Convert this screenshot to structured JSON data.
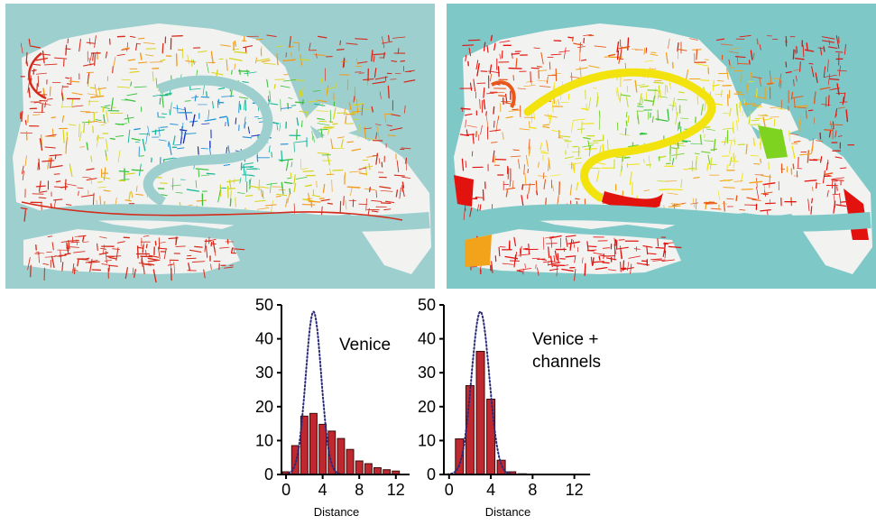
{
  "maps": {
    "left": {
      "water_color": "#9ecfcf",
      "land_color": "#f2f2f0",
      "street_colors": [
        "#1a2fbf",
        "#1e8fd6",
        "#19b79b",
        "#39c23a",
        "#d7d51c",
        "#f29a1a",
        "#d52a1a"
      ]
    },
    "right": {
      "water_color": "#7ec8c7",
      "land_color": "#f2f2f0",
      "street_colors": [
        "#2fbf3a",
        "#72cf2a",
        "#c9dc1f",
        "#f2e30f",
        "#f2a31a",
        "#e8581a",
        "#e2130f"
      ]
    }
  },
  "chart_data": [
    {
      "type": "bar",
      "title": "Venice",
      "xlabel": "Distance",
      "ylabel": "",
      "xlim": [
        -0.5,
        13.5
      ],
      "ylim": [
        0,
        50
      ],
      "xticks": [
        0,
        4,
        8,
        12
      ],
      "yticks": [
        0,
        10,
        20,
        30,
        40,
        50
      ],
      "x": [
        0,
        1,
        2,
        3,
        4,
        5,
        6,
        7,
        8,
        9,
        10,
        11,
        12
      ],
      "values": [
        0.8,
        8.5,
        17.2,
        18,
        14.8,
        12.8,
        10.6,
        7.4,
        4,
        3.2,
        2,
        1.4,
        1
      ],
      "bar_color": "#c0282f",
      "curve": {
        "style": "dotted",
        "color": "#2a2a7a",
        "peak_x": 3,
        "peak_y": 48,
        "sigma": 0.85
      }
    },
    {
      "type": "bar",
      "title": "Venice +\nchannels",
      "xlabel": "Distance",
      "ylabel": "",
      "xlim": [
        -0.5,
        13.5
      ],
      "ylim": [
        0,
        50
      ],
      "xticks": [
        0,
        4,
        8,
        12
      ],
      "yticks": [
        0,
        10,
        20,
        30,
        40,
        50
      ],
      "x": [
        0,
        1,
        2,
        3,
        4,
        5,
        6,
        7
      ],
      "values": [
        0,
        10.5,
        26.2,
        36.3,
        22.2,
        4.2,
        0.8,
        0.2
      ],
      "bar_color": "#c0282f",
      "curve": {
        "style": "dotted",
        "color": "#2a2a7a",
        "peak_x": 3,
        "peak_y": 48,
        "sigma": 0.85
      }
    }
  ]
}
